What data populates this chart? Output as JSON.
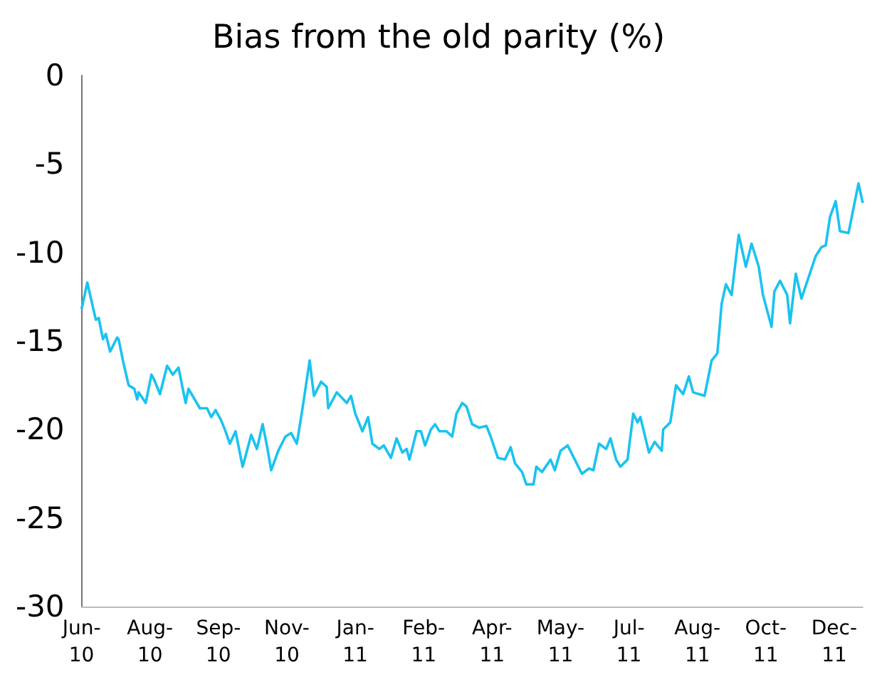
{
  "chart_data": {
    "type": "line",
    "title": "Bias from the old parity (%)",
    "x": [
      "2010-06-25",
      "2010-06-29",
      "2010-07-01",
      "2010-07-05",
      "2010-07-07",
      "2010-07-10",
      "2010-07-12",
      "2010-07-15",
      "2010-07-20",
      "2010-07-21",
      "2010-07-24",
      "2010-07-28",
      "2010-08-01",
      "2010-08-03",
      "2010-08-04",
      "2010-08-09",
      "2010-08-13",
      "2010-08-15",
      "2010-08-19",
      "2010-08-24",
      "2010-08-28",
      "2010-09-01",
      "2010-09-06",
      "2010-09-08",
      "2010-09-16",
      "2010-09-21",
      "2010-09-24",
      "2010-09-27",
      "2010-10-01",
      "2010-10-04",
      "2010-10-07",
      "2010-10-11",
      "2010-10-16",
      "2010-10-19",
      "2010-10-22",
      "2010-10-26",
      "2010-10-30",
      "2010-11-02",
      "2010-11-05",
      "2010-11-10",
      "2010-11-15",
      "2010-11-19",
      "2010-11-23",
      "2010-11-27",
      "2010-12-02",
      "2010-12-05",
      "2010-12-10",
      "2010-12-14",
      "2010-12-15",
      "2010-12-21",
      "2010-12-28",
      "2010-12-31",
      "2011-01-03",
      "2011-01-08",
      "2011-01-12",
      "2011-01-15",
      "2011-01-20",
      "2011-01-23",
      "2011-01-28",
      "2011-02-01",
      "2011-02-05",
      "2011-02-08",
      "2011-02-10",
      "2011-02-15",
      "2011-02-18",
      "2011-02-21",
      "2011-02-25",
      "2011-02-28",
      "2011-03-03",
      "2011-03-08",
      "2011-03-12",
      "2011-03-15",
      "2011-03-19",
      "2011-03-22",
      "2011-03-26",
      "2011-03-31",
      "2011-04-05",
      "2011-04-08",
      "2011-04-13",
      "2011-04-18",
      "2011-04-22",
      "2011-04-25",
      "2011-04-30",
      "2011-05-03",
      "2011-05-08",
      "2011-05-10",
      "2011-05-14",
      "2011-05-20",
      "2011-05-23",
      "2011-05-27",
      "2011-06-01",
      "2011-06-06",
      "2011-06-11",
      "2011-06-16",
      "2011-06-19",
      "2011-06-23",
      "2011-06-28",
      "2011-07-01",
      "2011-07-05",
      "2011-07-08",
      "2011-07-13",
      "2011-07-17",
      "2011-07-20",
      "2011-07-22",
      "2011-07-28",
      "2011-08-01",
      "2011-08-06",
      "2011-08-07",
      "2011-08-12",
      "2011-08-16",
      "2011-08-21",
      "2011-08-25",
      "2011-08-28",
      "2011-09-05",
      "2011-09-10",
      "2011-09-14",
      "2011-09-17",
      "2011-09-20",
      "2011-09-24",
      "2011-09-29",
      "2011-10-04",
      "2011-10-08",
      "2011-10-13",
      "2011-10-16",
      "2011-10-22",
      "2011-10-24",
      "2011-10-28",
      "2011-11-02",
      "2011-11-04",
      "2011-11-08",
      "2011-11-12",
      "2011-11-17",
      "2011-11-22",
      "2011-11-26",
      "2011-11-29",
      "2011-12-02",
      "2011-12-06",
      "2011-12-09",
      "2011-12-15",
      "2011-12-22",
      "2011-12-25"
    ],
    "series": [
      {
        "color": "#19c3f0",
        "values": [
          -13.2,
          -11.7,
          -12.4,
          -13.8,
          -13.7,
          -14.9,
          -14.6,
          -15.6,
          -14.8,
          -14.9,
          -16.1,
          -17.5,
          -17.7,
          -18.3,
          -17.9,
          -18.5,
          -16.9,
          -17.2,
          -18.0,
          -16.4,
          -16.9,
          -16.5,
          -18.5,
          -17.7,
          -18.8,
          -18.8,
          -19.3,
          -18.9,
          -19.5,
          -20.1,
          -20.8,
          -20.1,
          -22.1,
          -21.2,
          -20.3,
          -21.1,
          -19.7,
          -20.9,
          -22.3,
          -21.2,
          -20.4,
          -20.2,
          -20.8,
          -18.8,
          -16.1,
          -18.1,
          -17.3,
          -17.6,
          -18.8,
          -17.9,
          -18.5,
          -18.1,
          -19.1,
          -20.1,
          -19.3,
          -20.8,
          -21.1,
          -20.9,
          -21.6,
          -20.5,
          -21.3,
          -21.1,
          -21.7,
          -20.1,
          -20.1,
          -20.9,
          -20.0,
          -19.7,
          -20.1,
          -20.1,
          -20.4,
          -19.1,
          -18.5,
          -18.7,
          -19.7,
          -19.9,
          -19.8,
          -20.4,
          -21.6,
          -21.7,
          -21.0,
          -21.9,
          -22.4,
          -23.1,
          -23.1,
          -22.1,
          -22.4,
          -21.7,
          -22.3,
          -21.2,
          -20.9,
          -21.7,
          -22.5,
          -22.2,
          -22.3,
          -20.8,
          -21.1,
          -20.5,
          -21.7,
          -22.1,
          -21.7,
          -19.1,
          -19.6,
          -19.3,
          -21.3,
          -20.7,
          -21.2,
          -20.0,
          -19.6,
          -17.5,
          -18.0,
          -17.0,
          -17.9,
          -18.1,
          -16.1,
          -15.7,
          -12.9,
          -11.8,
          -12.4,
          -9.0,
          -10.8,
          -9.5,
          -10.8,
          -12.4,
          -14.2,
          -12.2,
          -11.6,
          -12.4,
          -14.0,
          -11.2,
          -12.6,
          -11.4,
          -10.2,
          -9.7,
          -9.6,
          -8.0,
          -7.1,
          -8.8,
          -8.9,
          -6.1,
          -7.2
        ]
      }
    ],
    "xticks": [
      {
        "value": "2010-06-25",
        "label": "Jun-10"
      },
      {
        "value": "2010-08-12",
        "label": "Aug-10"
      },
      {
        "value": "2010-09-29",
        "label": "Sep-10"
      },
      {
        "value": "2010-11-16",
        "label": "Nov-10"
      },
      {
        "value": "2011-01-03",
        "label": "Jan-11"
      },
      {
        "value": "2011-02-20",
        "label": "Feb-11"
      },
      {
        "value": "2011-04-09",
        "label": "Apr-11"
      },
      {
        "value": "2011-05-27",
        "label": "May-11"
      },
      {
        "value": "2011-07-14",
        "label": "Jul-11"
      },
      {
        "value": "2011-08-31",
        "label": "Aug-11"
      },
      {
        "value": "2011-10-18",
        "label": "Oct-11"
      },
      {
        "value": "2011-12-05",
        "label": "Dec-11"
      }
    ],
    "xlim": [
      "2010-06-25",
      "2011-12-25"
    ],
    "ylim": [
      -30,
      0
    ],
    "yticks": [
      -30,
      -25,
      -20,
      -15,
      -10,
      -5,
      0
    ],
    "grid": false,
    "marker": "none",
    "line_style": "solid"
  }
}
